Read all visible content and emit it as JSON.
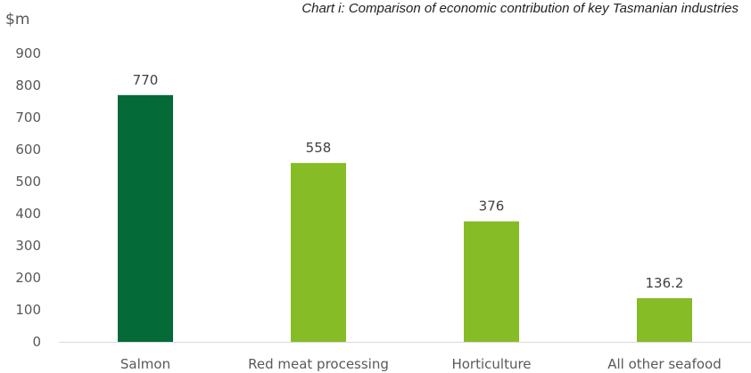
{
  "chart_data": {
    "type": "bar",
    "title": "Chart i: Comparison of economic contribution of key Tasmanian industries",
    "ylabel": "$m",
    "xlabel": "",
    "categories": [
      "Salmon",
      "Red meat processing",
      "Horticulture",
      "All other seafood"
    ],
    "values": [
      770,
      558,
      376,
      136.2
    ],
    "value_labels": [
      "770",
      "558",
      "376",
      "136.2"
    ],
    "ylim": [
      0,
      900
    ],
    "yticks": [
      0,
      100,
      200,
      300,
      400,
      500,
      600,
      700,
      800,
      900
    ],
    "grid": false,
    "legend": "none",
    "colors": [
      "#046a38",
      "#86bc25",
      "#86bc25",
      "#86bc25"
    ],
    "axis_color": "#d9d9d9"
  }
}
